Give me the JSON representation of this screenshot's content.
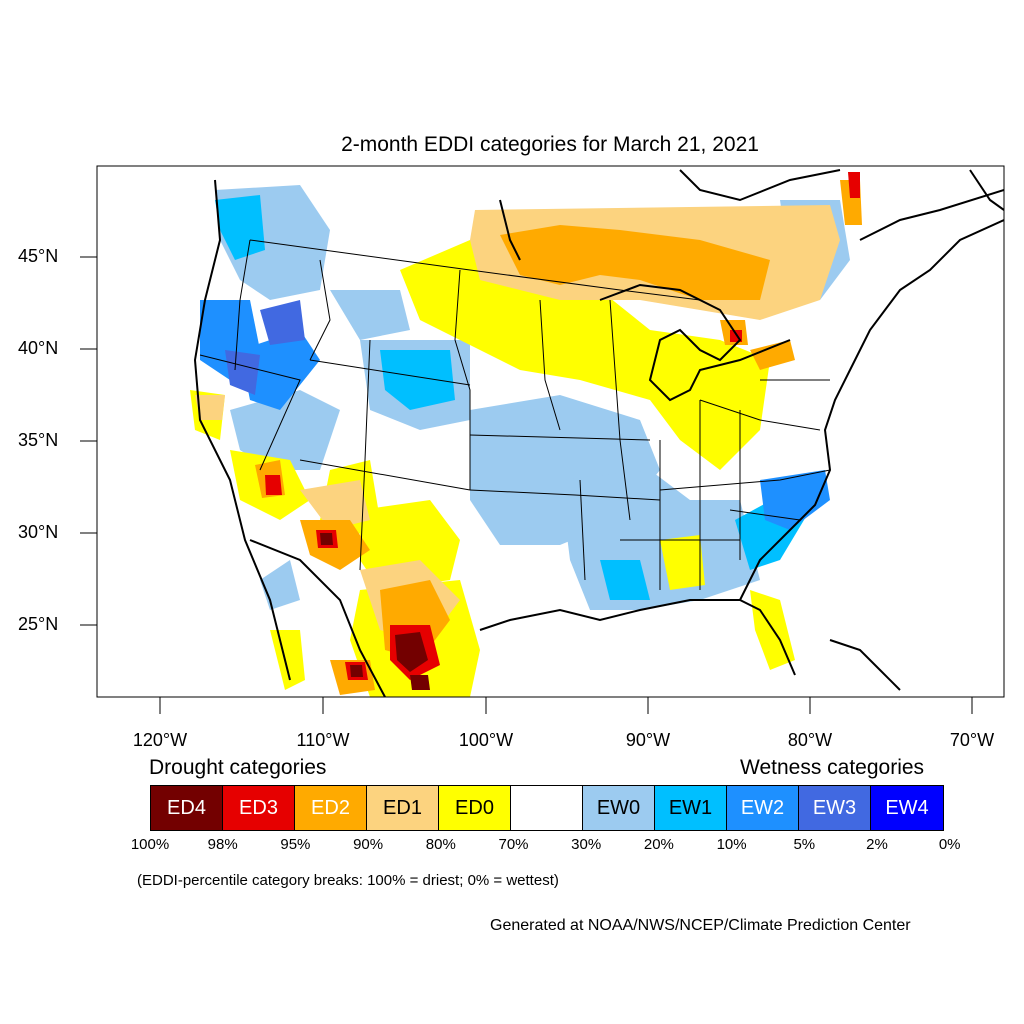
{
  "title": "2-month EDDI categories for March 21, 2021",
  "lat_labels": [
    "45°N",
    "40°N",
    "35°N",
    "30°N",
    "25°N"
  ],
  "lon_labels": [
    "120°W",
    "110°W",
    "100°W",
    "90°W",
    "80°W",
    "70°W"
  ],
  "legend": {
    "drought_heading": "Drought categories",
    "wetness_heading": "Wetness categories",
    "categories": [
      {
        "label": "ED4",
        "color": "#730000",
        "text_color": "#ffffff"
      },
      {
        "label": "ED3",
        "color": "#e60000",
        "text_color": "#ffffff"
      },
      {
        "label": "ED2",
        "color": "#ffaa00",
        "text_color": "#ffffff"
      },
      {
        "label": "ED1",
        "color": "#fcd37f",
        "text_color": "#000000"
      },
      {
        "label": "ED0",
        "color": "#ffff00",
        "text_color": "#000000"
      },
      {
        "label": "",
        "color": "#ffffff",
        "text_color": "#000000"
      },
      {
        "label": "EW0",
        "color": "#9ccbf0",
        "text_color": "#000000"
      },
      {
        "label": "EW1",
        "color": "#00bfff",
        "text_color": "#000000"
      },
      {
        "label": "EW2",
        "color": "#1e90ff",
        "text_color": "#ffffff"
      },
      {
        "label": "EW3",
        "color": "#4169e1",
        "text_color": "#ffffff"
      },
      {
        "label": "EW4",
        "color": "#0000ff",
        "text_color": "#ffffff"
      }
    ],
    "breaks": [
      "100%",
      "98%",
      "95%",
      "90%",
      "80%",
      "70%",
      "30%",
      "20%",
      "10%",
      "5%",
      "2%",
      "0%"
    ],
    "note": "(EDDI-percentile category breaks: 100% = driest; 0% = wettest)"
  },
  "credit": "Generated at NOAA/NWS/NCEP/Climate Prediction Center"
}
